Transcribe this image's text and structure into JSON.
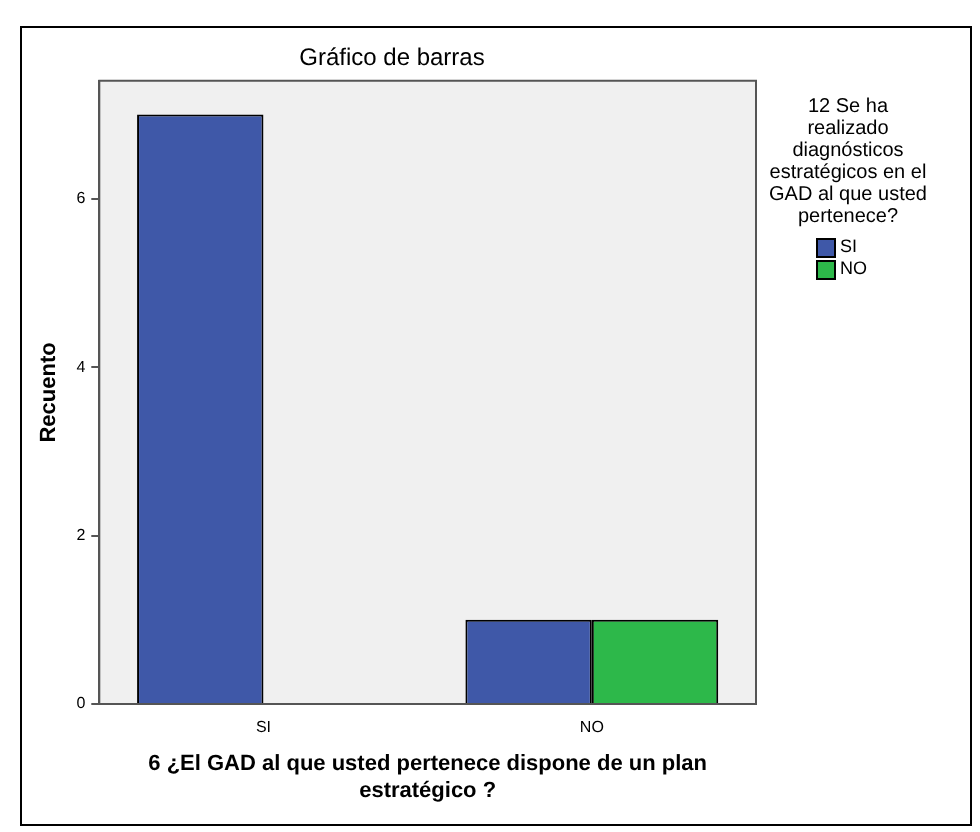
{
  "chart_data": {
    "type": "bar",
    "title": "Gráfico de barras",
    "xlabel": "6 ¿El GAD al que usted pertenece dispone de un plan estratégico ?",
    "ylabel": "Recuento",
    "legend_title": "12 Se ha realizado diagnósticos estratégicos en el GAD al que usted pertenece?",
    "categories": [
      "SI",
      "NO"
    ],
    "series": [
      {
        "name": "SI",
        "color": "#3f58a8",
        "values": [
          7,
          1
        ]
      },
      {
        "name": "NO",
        "color": "#2db84a",
        "values": [
          null,
          1
        ]
      }
    ],
    "ylim": [
      0,
      7.4
    ],
    "yticks": [
      0,
      2,
      4,
      6
    ],
    "grid": false,
    "legend": "top right"
  }
}
